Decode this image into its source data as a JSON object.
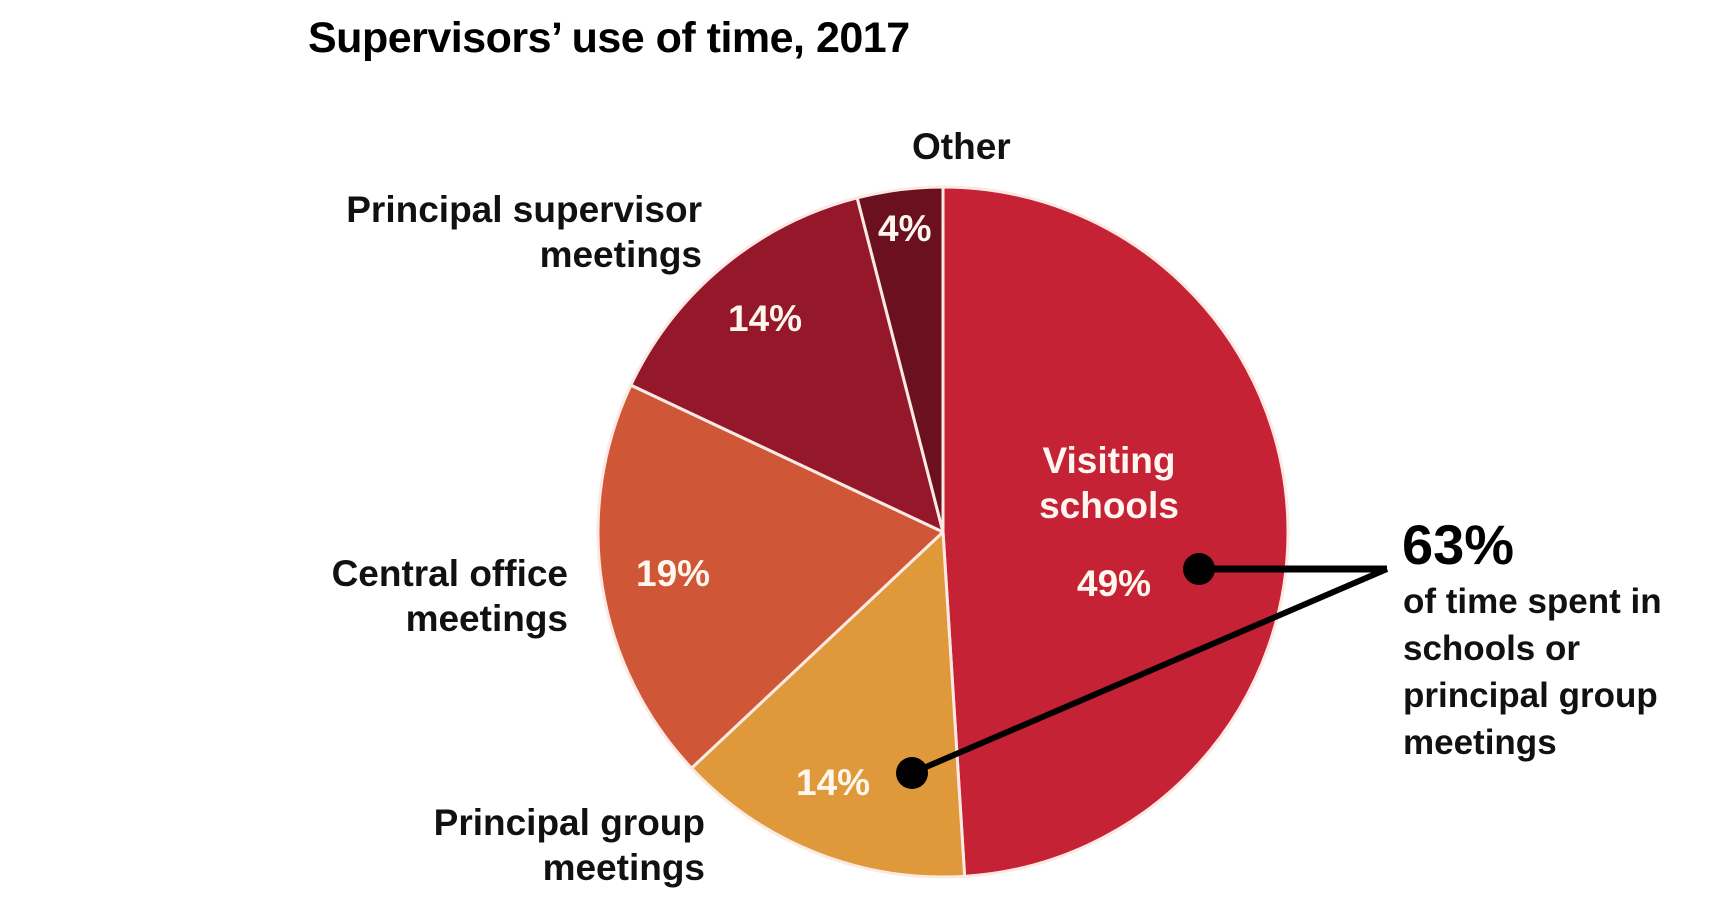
{
  "title": "Supervisors’ use of time, 2017",
  "chart_data": {
    "type": "pie",
    "title": "Supervisors’ use of time, 2017",
    "categories": [
      "Visiting schools",
      "Principal group meetings",
      "Central office meetings",
      "Principal supervisor meetings",
      "Other"
    ],
    "values": [
      49,
      14,
      19,
      14,
      4
    ],
    "unit": "%",
    "colors": [
      "#c62235",
      "#e0993a",
      "#cf5636",
      "#95182a",
      "#6b101e"
    ],
    "start_angle_deg": 0,
    "direction": "clockwise",
    "annotation": {
      "value": "63%",
      "text": "of time spent in schools or principal group meetings",
      "points_to": [
        "Visiting schools",
        "Principal group meetings"
      ]
    }
  },
  "labels": {
    "visiting": {
      "line1": "Visiting",
      "line2": "schools",
      "pct": "49%"
    },
    "principal_group": {
      "line1": "Principal group",
      "line2": "meetings",
      "pct": "14%"
    },
    "central_office": {
      "line1": "Central office",
      "line2": "meetings",
      "pct": "19%"
    },
    "principal_supervisor": {
      "line1": "Principal supervisor",
      "line2": "meetings",
      "pct": "14%"
    },
    "other": {
      "line1": "Other",
      "pct": "4%"
    }
  },
  "callout": {
    "value": "63%",
    "lines": [
      "of time spent in",
      "schools or",
      "principal group",
      "meetings"
    ]
  }
}
